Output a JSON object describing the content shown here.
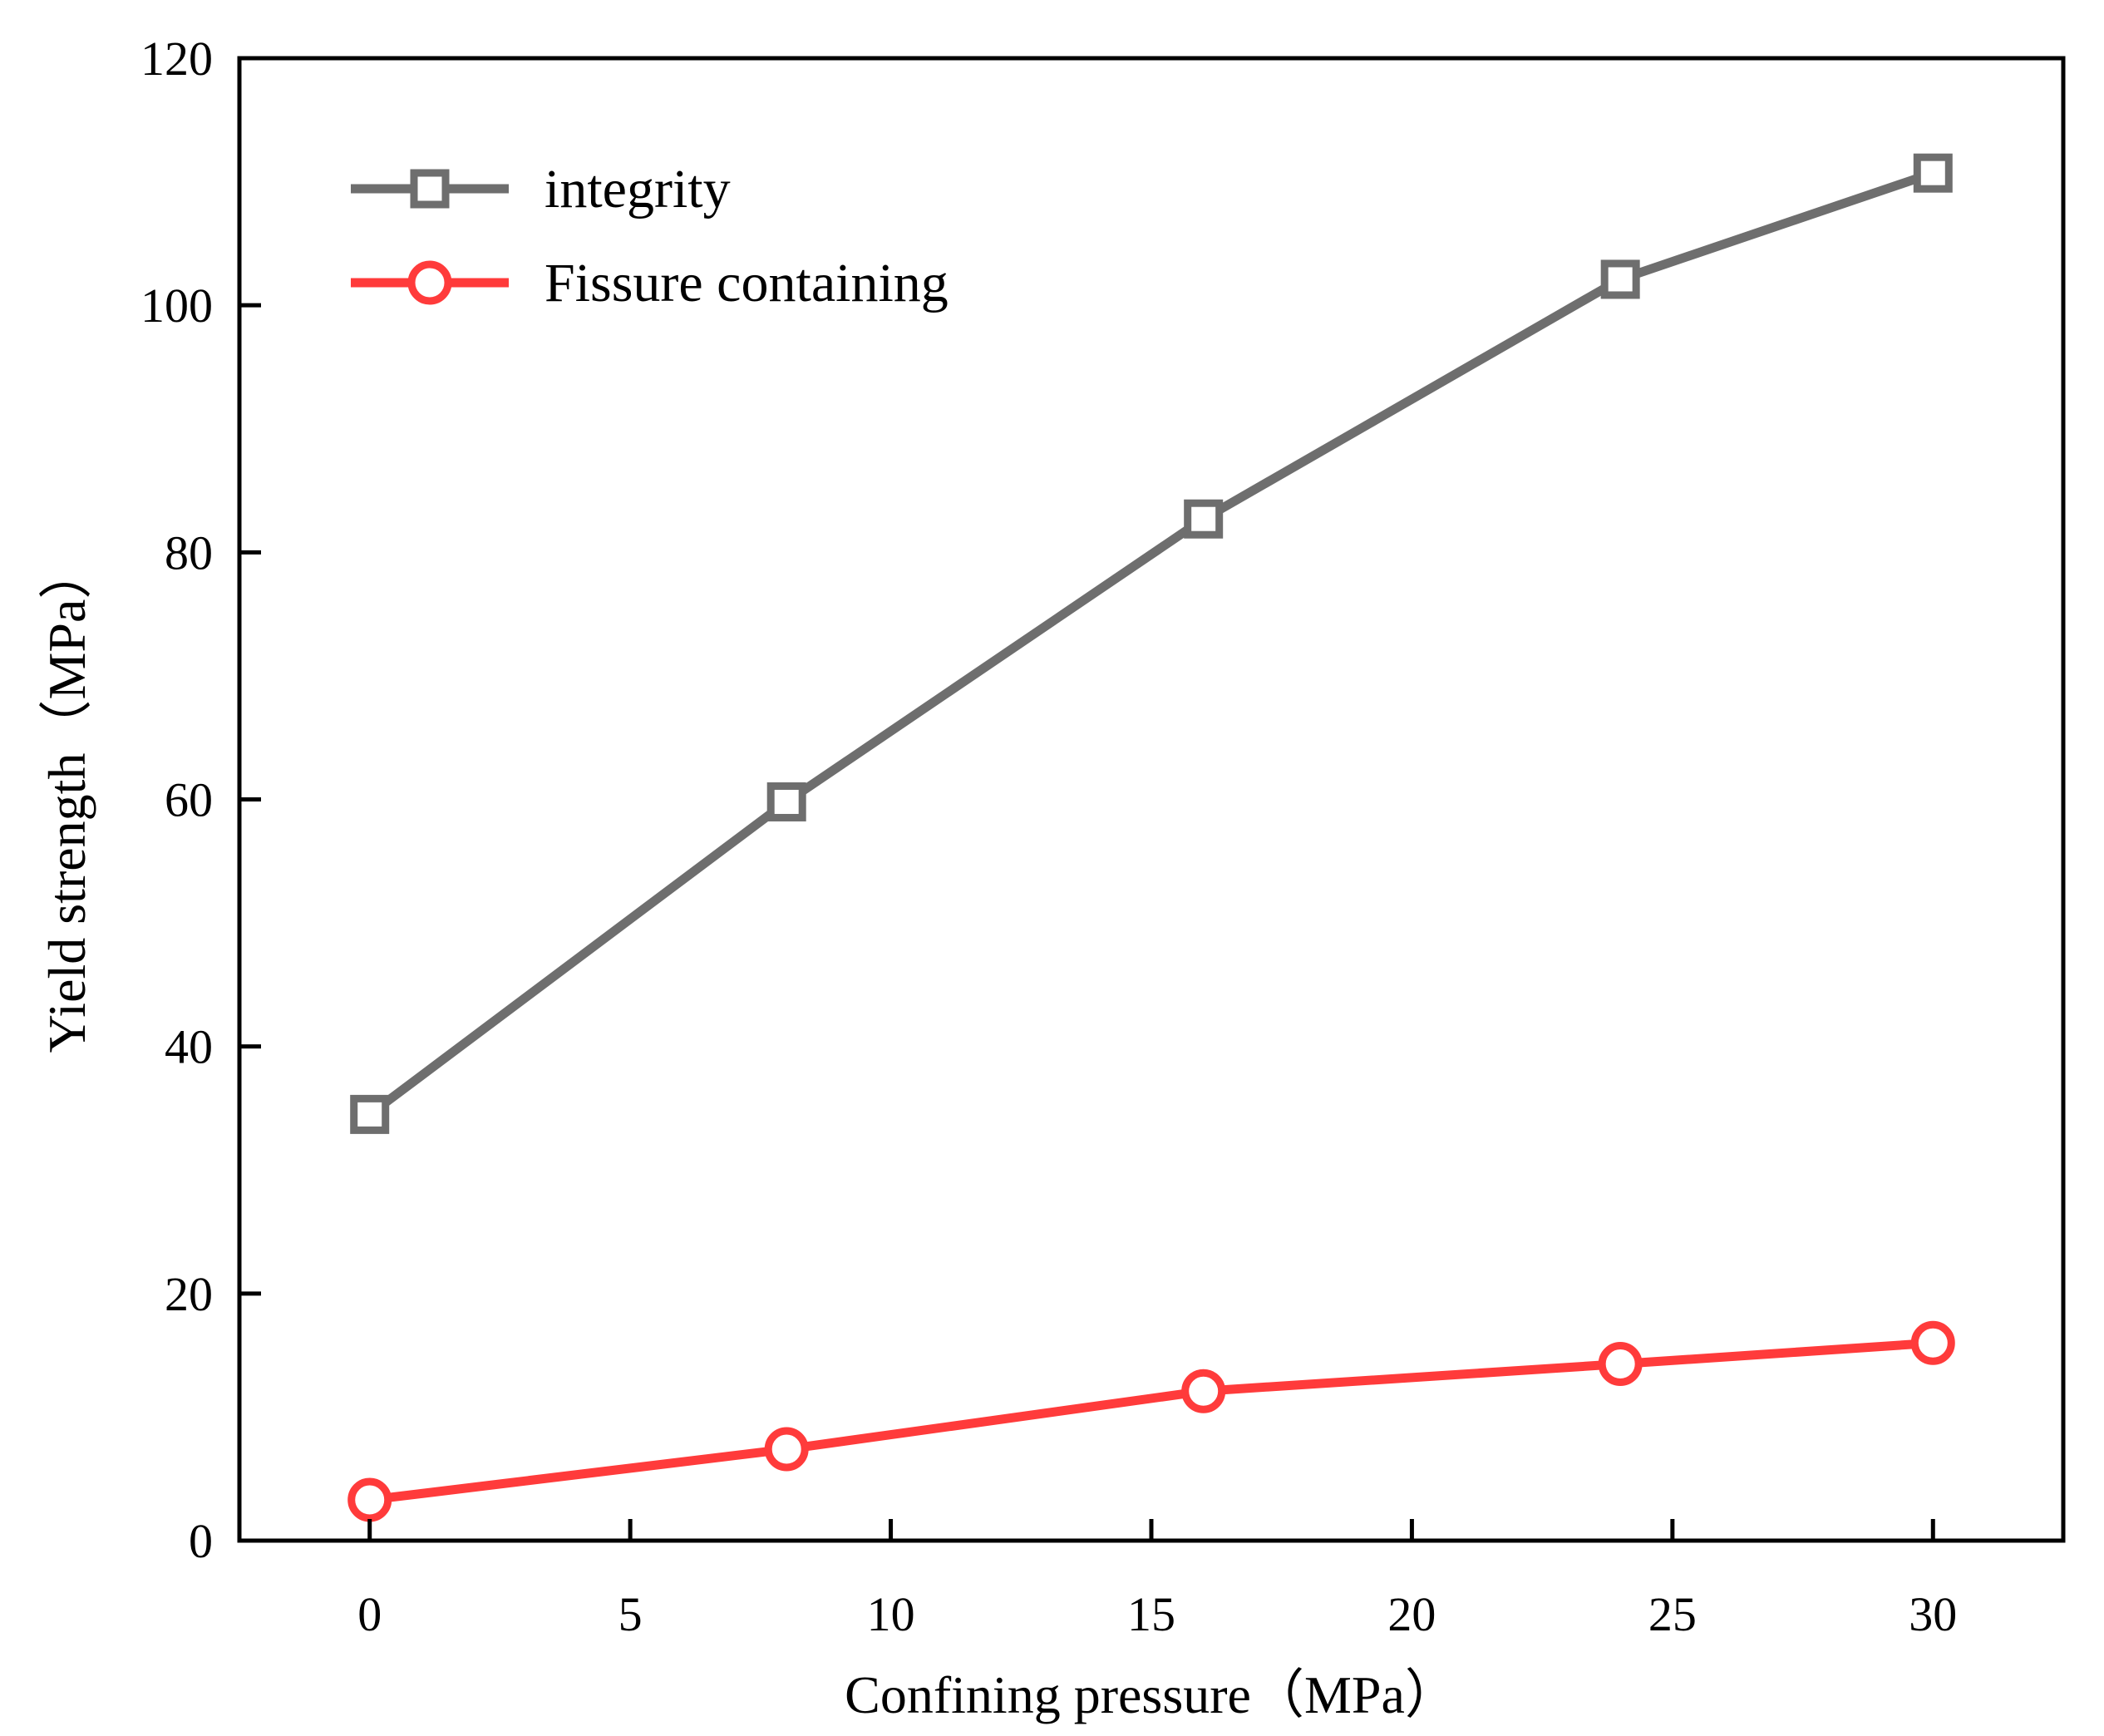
{
  "chart_data": {
    "type": "line",
    "title": "",
    "xlabel": "Confining pressure（MPa）",
    "ylabel": "Yield strength（MPa）",
    "xlim": [
      -2.5,
      32.5
    ],
    "ylim": [
      0,
      120
    ],
    "xticks": [
      0,
      5,
      10,
      15,
      20,
      25,
      30
    ],
    "yticks": [
      0,
      20,
      40,
      60,
      80,
      100,
      120
    ],
    "grid": false,
    "legend": {
      "position": "top-left"
    },
    "series": [
      {
        "name": "integrity",
        "marker": "square",
        "color": "#6e6e6e",
        "x": [
          0,
          8,
          16,
          24,
          30
        ],
        "y": [
          34.5,
          59.8,
          82.7,
          102.1,
          110.7
        ]
      },
      {
        "name": "Fissure containing",
        "marker": "circle",
        "color": "#ff3b3b",
        "x": [
          0,
          8,
          16,
          24,
          30
        ],
        "y": [
          3.3,
          7.4,
          12.1,
          14.3,
          16.0
        ]
      }
    ]
  }
}
